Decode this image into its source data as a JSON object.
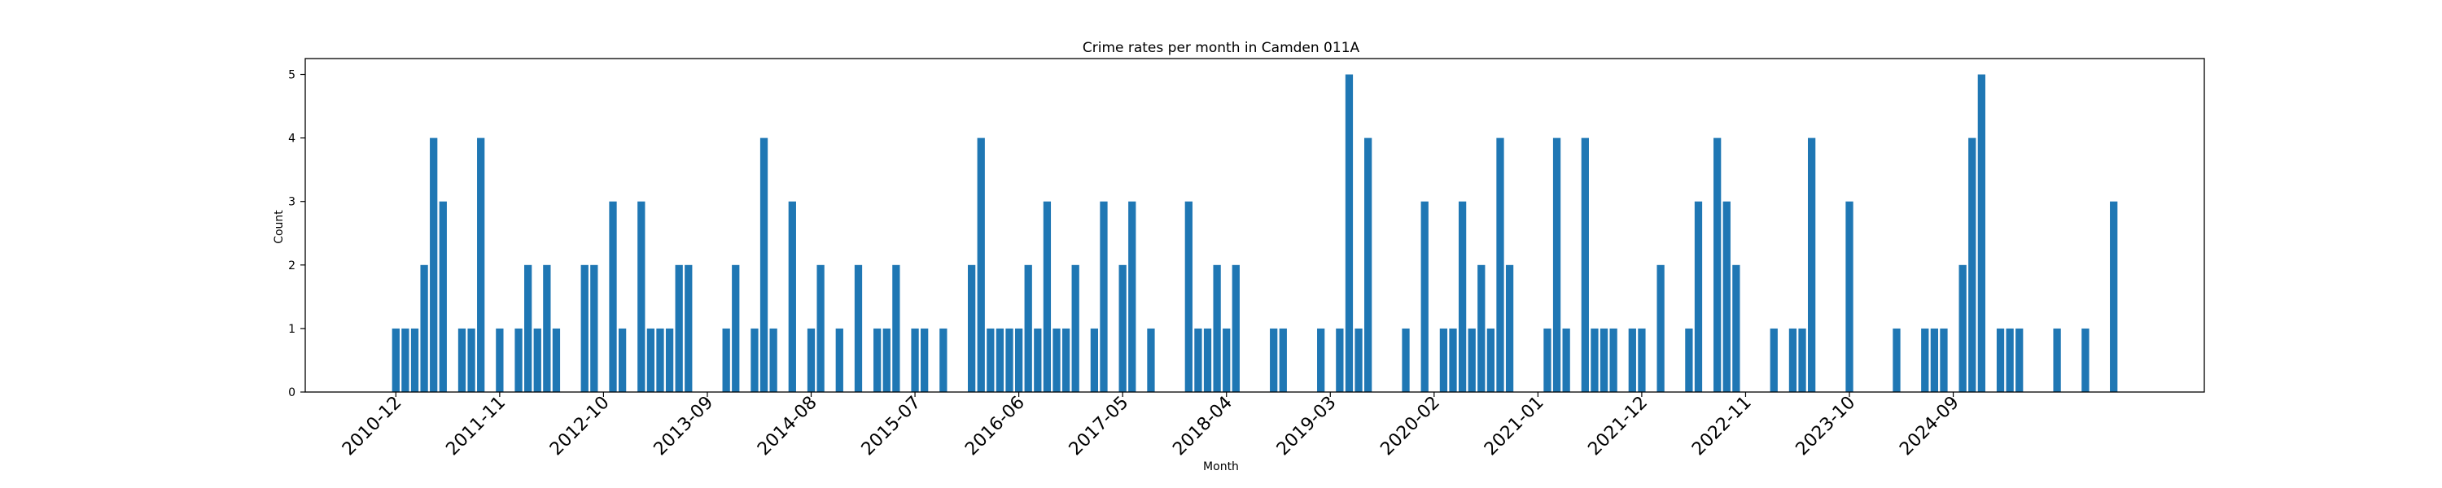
{
  "chart_data": {
    "type": "bar",
    "title": "Crime rates per month in Camden 011A",
    "xlabel": "Month",
    "ylabel": "Count",
    "ylim": [
      0,
      5.25
    ],
    "yticks": [
      0,
      1,
      2,
      3,
      4,
      5
    ],
    "start_month": "2010-12",
    "xtick_labels": [
      "2010-12",
      "2011-11",
      "2012-10",
      "2013-09",
      "2014-08",
      "2015-07",
      "2016-06",
      "2017-05",
      "2018-04",
      "2019-03",
      "2020-02",
      "2021-01",
      "2021-12",
      "2022-11",
      "2023-10",
      "2024-09"
    ],
    "colors": {
      "bar": "#1f77b4",
      "axes": "#000000",
      "background": "#ffffff"
    },
    "grid": false,
    "legend": "none",
    "series": [
      {
        "values": [
          1,
          1,
          1,
          2,
          4,
          3,
          0,
          1,
          1,
          4,
          0,
          1,
          0,
          1,
          2,
          1,
          2,
          1,
          0,
          0,
          2,
          2,
          0,
          3,
          1,
          0,
          3,
          1,
          1,
          1,
          2,
          2,
          0,
          0,
          0,
          1,
          2,
          0,
          1,
          4,
          1,
          0,
          3,
          0,
          1,
          2,
          0,
          1,
          0,
          2,
          0,
          1,
          1,
          2,
          0,
          1,
          1,
          0,
          1,
          0,
          0,
          2,
          4,
          1,
          1,
          1,
          1,
          2,
          1,
          3,
          1,
          1,
          2,
          0,
          1,
          3,
          0,
          2,
          3,
          0,
          1,
          0,
          0,
          0,
          3,
          1,
          1,
          2,
          1,
          2,
          0,
          0,
          0,
          1,
          1,
          0,
          0,
          0,
          1,
          0,
          1,
          5,
          1,
          4,
          0,
          0,
          0,
          1,
          0,
          3,
          0,
          1,
          1,
          3,
          1,
          2,
          1,
          4,
          2,
          0,
          0,
          0,
          1,
          4,
          1,
          0,
          4,
          1,
          1,
          1,
          0,
          1,
          1,
          0,
          2,
          0,
          0,
          1,
          3,
          0,
          4,
          3,
          2,
          0,
          0,
          0,
          1,
          0,
          1,
          1,
          4,
          0,
          0,
          0,
          3,
          0,
          0,
          0,
          0,
          1,
          0,
          0,
          1,
          1,
          1,
          0,
          2,
          4,
          5,
          0,
          1,
          1,
          1,
          0,
          0,
          0,
          1,
          0,
          0,
          1,
          0,
          0,
          3
        ]
      }
    ]
  }
}
